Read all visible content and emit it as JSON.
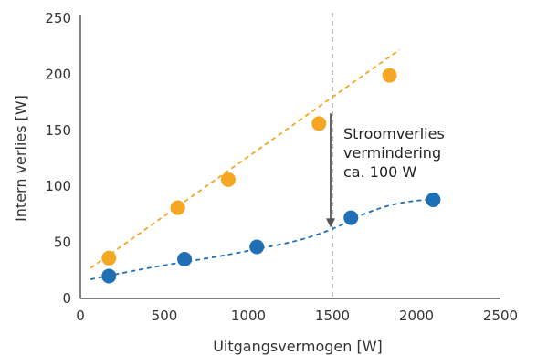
{
  "chart_data": {
    "type": "scatter",
    "xlabel": "Uitgangsvermogen [W]",
    "ylabel": "Intern verlies [W]",
    "xlim": [
      0,
      2500
    ],
    "ylim": [
      0,
      250
    ],
    "xticks": [
      "0",
      "500",
      "1000",
      "1500",
      "2000",
      "2500"
    ],
    "yticks": [
      "0",
      "50",
      "100",
      "150",
      "200",
      "250"
    ],
    "grid": false,
    "legend": "none",
    "series": [
      {
        "color": "#f5a623",
        "points": [
          [
            170,
            36
          ],
          [
            580,
            81
          ],
          [
            880,
            106
          ],
          [
            1420,
            156
          ],
          [
            1840,
            199
          ]
        ],
        "trendline": "linear",
        "trend_x": [
          60,
          1900
        ],
        "trend_y": [
          27,
          222
        ]
      },
      {
        "color": "#1f6fb5",
        "points": [
          [
            170,
            20
          ],
          [
            620,
            35
          ],
          [
            1050,
            46
          ],
          [
            1610,
            72
          ],
          [
            2100,
            88
          ]
        ],
        "trendline": "smooth",
        "trend_points": [
          [
            60,
            17
          ],
          [
            400,
            27
          ],
          [
            800,
            37
          ],
          [
            1050,
            44
          ],
          [
            1300,
            52
          ],
          [
            1500,
            62
          ],
          [
            1700,
            76
          ],
          [
            1900,
            85
          ],
          [
            2120,
            89
          ]
        ]
      }
    ],
    "vline": {
      "x": 1500,
      "color": "#999999"
    },
    "annotation": {
      "lines": [
        "Stroomverlies",
        "vermindering",
        "ca. 100 W"
      ],
      "arrow_from_y": 165,
      "arrow_to_y": 64,
      "arrow_x": 1500
    }
  }
}
